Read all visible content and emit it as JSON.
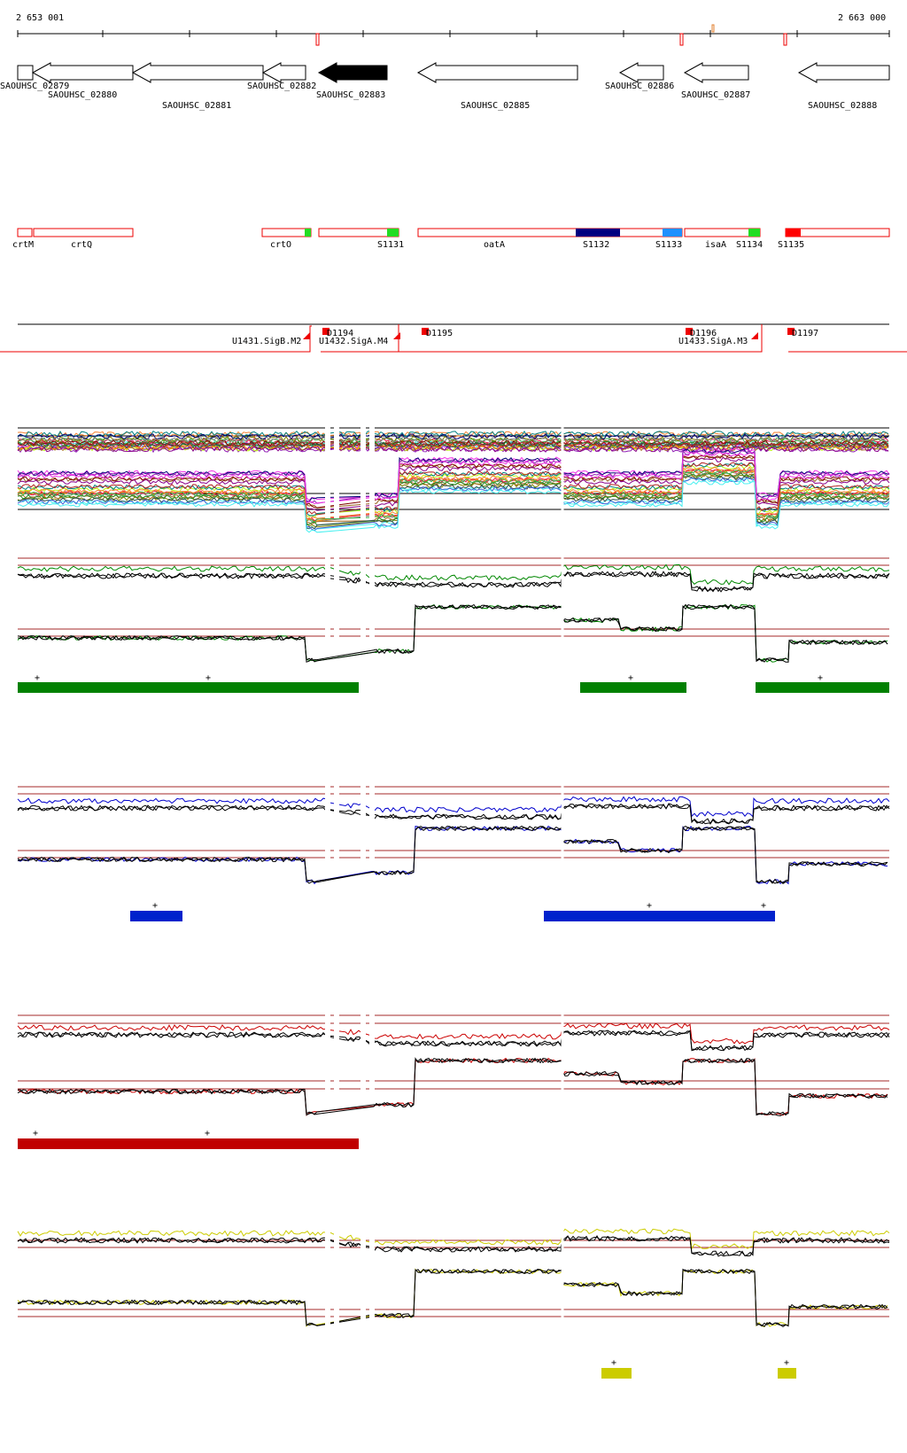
{
  "ruler": {
    "start": "2 653 001",
    "end": "2 663 000"
  },
  "genes": [
    {
      "label": "SAOUHSC_02879",
      "strand": "-"
    },
    {
      "label": "SAOUHSC_02880",
      "strand": "-"
    },
    {
      "label": "SAOUHSC_02881",
      "strand": "-"
    },
    {
      "label": "SAOUHSC_02882",
      "strand": "-"
    },
    {
      "label": "SAOUHSC_02883",
      "strand": "-",
      "highlight": true
    },
    {
      "label": "SAOUHSC_02885",
      "strand": "-"
    },
    {
      "label": "SAOUHSC_02886",
      "strand": "-"
    },
    {
      "label": "SAOUHSC_02887",
      "strand": "-"
    },
    {
      "label": "SAOUHSC_02888",
      "strand": "-"
    }
  ],
  "features": [
    "crtM",
    "crtQ",
    "crtO",
    "S1131",
    "oatA",
    "S1132",
    "S1133",
    "isaA",
    "S1134",
    "S1135"
  ],
  "feature_colors": {
    "S1131": "#22dd22",
    "S1132": "#000080",
    "S1133": "#1e90ff",
    "S1134": "#22dd22",
    "S1135": "#ff0000",
    "crtO": "#22dd22"
  },
  "transcription": [
    {
      "label": "U1431.SigB.M2"
    },
    {
      "label": "D1194"
    },
    {
      "label": "U1432.SigA.M4"
    },
    {
      "label": "D1195"
    },
    {
      "label": "D1196"
    },
    {
      "label": "U1433.SigA.M3"
    },
    {
      "label": "D1197"
    }
  ],
  "conditions": [
    {
      "color": "#008800",
      "bar_color": "#008000"
    },
    {
      "color": "#0000cc",
      "bar_color": "#0022cc"
    },
    {
      "color": "#cc0000",
      "bar_color": "#c00000"
    },
    {
      "color": "#cccc00",
      "bar_color": "#cccc00"
    }
  ],
  "plus_sign": "+"
}
